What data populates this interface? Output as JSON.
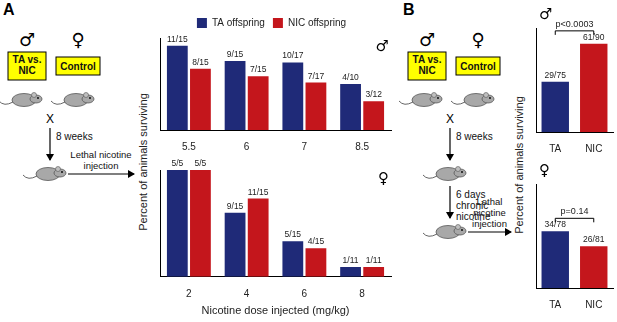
{
  "panels": [
    {
      "label": "A",
      "male": "♂",
      "female": "♀",
      "male_box": "TA vs. NIC",
      "female_box": "Control",
      "cross": "X",
      "steps": [
        "8 weeks",
        "Lethal nicotine injection"
      ]
    },
    {
      "label": "B",
      "male": "♂",
      "female": "♀",
      "male_box": "TA vs. NIC",
      "female_box": "Control",
      "cross": "X",
      "steps": [
        "8 weeks",
        "6 days chronic nicotine",
        "Lethal nicotine injection"
      ]
    }
  ],
  "chart_data": [
    {
      "type": "bar",
      "title": "♂",
      "y_label": "Percent of animals surviving",
      "categories": [
        "5.5",
        "6",
        "7",
        "8.5"
      ],
      "series": [
        {
          "name": "TA offspring",
          "color": "#1f2a78",
          "values": [
            73.3,
            60,
            58.8,
            40
          ],
          "value_labels": [
            "11/15",
            "9/15",
            "10/17",
            "4/10"
          ]
        },
        {
          "name": "NIC offspring",
          "color": "#c4161c",
          "values": [
            53.3,
            46.7,
            41.2,
            25
          ],
          "value_labels": [
            "8/15",
            "7/15",
            "7/17",
            "3/12"
          ]
        }
      ],
      "ylim": [
        0,
        80
      ],
      "legend": "top",
      "data_labels": true,
      "tick_labels": "x",
      "grid": false
    },
    {
      "type": "bar",
      "title": "♀",
      "x_label": "Nicotine dose injected (mg/kg)",
      "categories": [
        "2",
        "4",
        "6",
        "8"
      ],
      "series": [
        {
          "name": "TA offspring",
          "color": "#1f2a78",
          "values": [
            100,
            60,
            33.3,
            9.1
          ],
          "value_labels": [
            "5/5",
            "9/15",
            "5/15",
            "1/11"
          ]
        },
        {
          "name": "NIC offspring",
          "color": "#c4161c",
          "values": [
            100,
            73.3,
            26.7,
            9.1
          ],
          "value_labels": [
            "5/5",
            "11/15",
            "4/15",
            "1/11"
          ]
        }
      ],
      "ylim": [
        0,
        100
      ],
      "data_labels": true,
      "tick_labels": "x",
      "grid": false
    },
    {
      "type": "bar",
      "title": "♂",
      "y_label": "Percent of animals surviving",
      "categories": [
        "TA",
        "NIC"
      ],
      "values": [
        38.7,
        67.8
      ],
      "value_labels": [
        "29/75",
        "61/90"
      ],
      "colors": [
        "#1f2a78",
        "#c4161c"
      ],
      "annotation": "p<0.0003",
      "ylim": [
        0,
        80
      ],
      "data_labels": true,
      "tick_labels": "x",
      "grid": false
    },
    {
      "type": "bar",
      "title": "♀",
      "categories": [
        "TA",
        "NIC"
      ],
      "values": [
        43.6,
        32.1
      ],
      "value_labels": [
        "34/78",
        "26/81"
      ],
      "colors": [
        "#1f2a78",
        "#c4161c"
      ],
      "annotation": "p=0.14",
      "ylim": [
        0,
        80
      ],
      "data_labels": true,
      "tick_labels": "x",
      "grid": false
    }
  ]
}
